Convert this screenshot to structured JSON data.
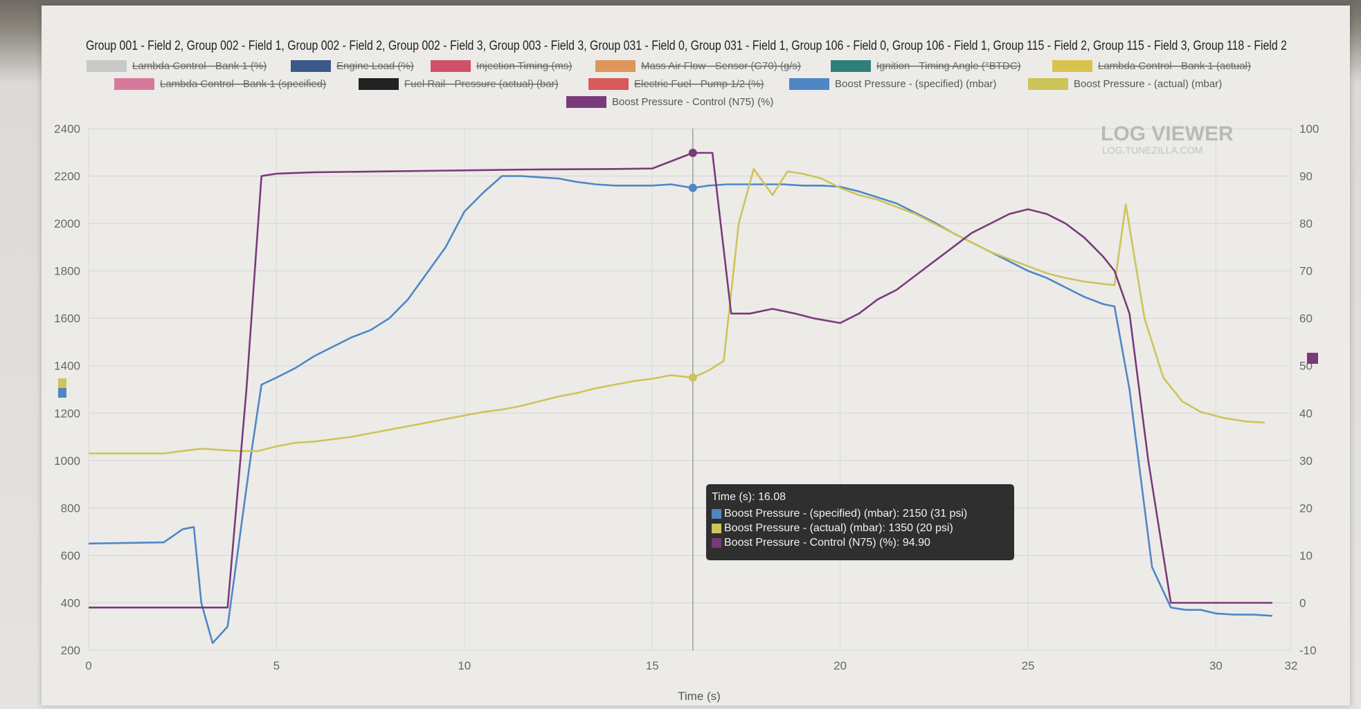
{
  "title": "Group 001 - Field 2, Group 002 - Field 1, Group 002 - Field 2, Group 002 - Field 3, Group 003 - Field 3, Group 031 - Field 0, Group 031 - Field 1, Group 106 - Field 0, Group 106 - Field 1, Group 115 - Field 2, Group 115 - Field 3, Group 118 - Field 2",
  "watermark": {
    "main": "LOG VIEWER",
    "sub": "LOG.TUNEZILLA.COM"
  },
  "legend": [
    {
      "label": "Lambda Control - Bank 1 (%)",
      "color": "#c8c8c8",
      "enabled": false
    },
    {
      "label": "Engine Load (%)",
      "color": "#3a5a8a",
      "enabled": false
    },
    {
      "label": "Injection Timing (ms)",
      "color": "#d0506a",
      "enabled": false
    },
    {
      "label": "Mass Air Flow - Sensor (G70) (g/s)",
      "color": "#e0955a",
      "enabled": false
    },
    {
      "label": "Ignition - Timing Angle (°BTDC)",
      "color": "#2f7f78",
      "enabled": false
    },
    {
      "label": "Lambda Control - Bank 1 (actual)",
      "color": "#d8c44c",
      "enabled": false
    },
    {
      "label": "Lambda Control - Bank 1 (specified)",
      "color": "#d57a9a",
      "enabled": false
    },
    {
      "label": "Fuel Rail - Pressure (actual) (bar)",
      "color": "#222222",
      "enabled": false
    },
    {
      "label": "Electric Fuel - Pump 1/2 (%)",
      "color": "#d85a5a",
      "enabled": false
    },
    {
      "label": "Boost Pressure - (specified) (mbar)",
      "color": "#4f86c6",
      "enabled": true
    },
    {
      "label": "Boost Pressure - (actual) (mbar)",
      "color": "#cdc45a",
      "enabled": true
    },
    {
      "label": "Boost Pressure - Control (N75) (%)",
      "color": "#7a3a7a",
      "enabled": true
    }
  ],
  "tooltip": {
    "time": "Time (s): 16.08",
    "rows": [
      {
        "text": "Boost Pressure - (specified) (mbar): 2150 (31 psi)",
        "color": "#4f86c6"
      },
      {
        "text": "Boost Pressure - (actual) (mbar): 1350 (20 psi)",
        "color": "#cdc45a"
      },
      {
        "text": "Boost Pressure - Control (N75) (%): 94.90",
        "color": "#7a3a7a"
      }
    ]
  },
  "chart_data": {
    "type": "line",
    "xlabel": "Time (s)",
    "x_ticks": [
      "0",
      "5",
      "10",
      "15",
      "20",
      "25",
      "30",
      "32"
    ],
    "xlim": [
      0,
      32
    ],
    "y_left_ticks": [
      "200",
      "400",
      "600",
      "800",
      "1000",
      "1200",
      "1400",
      "1600",
      "1800",
      "2000",
      "2200",
      "2400"
    ],
    "ylim_left": [
      200,
      2400
    ],
    "y_right_ticks": [
      "-10",
      "0",
      "10",
      "20",
      "30",
      "40",
      "50",
      "60",
      "70",
      "80",
      "90",
      "100"
    ],
    "ylim_right": [
      -10,
      100
    ],
    "grid": true,
    "cursor_x": 16.08,
    "series": [
      {
        "name": "Boost Pressure - (specified) (mbar)",
        "axis": "left",
        "color": "#4f86c6",
        "points": [
          [
            0,
            650
          ],
          [
            2,
            655
          ],
          [
            2.5,
            710
          ],
          [
            2.8,
            720
          ],
          [
            3,
            400
          ],
          [
            3.3,
            230
          ],
          [
            3.7,
            300
          ],
          [
            4.3,
            1000
          ],
          [
            4.6,
            1320
          ],
          [
            5,
            1350
          ],
          [
            5.5,
            1390
          ],
          [
            6,
            1440
          ],
          [
            6.5,
            1480
          ],
          [
            7,
            1520
          ],
          [
            7.5,
            1550
          ],
          [
            8,
            1600
          ],
          [
            8.5,
            1680
          ],
          [
            9,
            1790
          ],
          [
            9.5,
            1900
          ],
          [
            10,
            2050
          ],
          [
            10.5,
            2130
          ],
          [
            11,
            2200
          ],
          [
            11.5,
            2200
          ],
          [
            12,
            2195
          ],
          [
            12.5,
            2190
          ],
          [
            13,
            2175
          ],
          [
            13.5,
            2165
          ],
          [
            14,
            2160
          ],
          [
            14.5,
            2160
          ],
          [
            15,
            2160
          ],
          [
            15.5,
            2165
          ],
          [
            16.08,
            2150
          ],
          [
            16.5,
            2160
          ],
          [
            17,
            2165
          ],
          [
            17.5,
            2165
          ],
          [
            18,
            2165
          ],
          [
            18.5,
            2165
          ],
          [
            19,
            2160
          ],
          [
            19.5,
            2160
          ],
          [
            20,
            2155
          ],
          [
            20.5,
            2135
          ],
          [
            21,
            2110
          ],
          [
            21.5,
            2085
          ],
          [
            22,
            2045
          ],
          [
            22.5,
            2005
          ],
          [
            23,
            1960
          ],
          [
            23.5,
            1920
          ],
          [
            24,
            1880
          ],
          [
            24.5,
            1840
          ],
          [
            25,
            1800
          ],
          [
            25.5,
            1770
          ],
          [
            26,
            1730
          ],
          [
            26.5,
            1690
          ],
          [
            27,
            1660
          ],
          [
            27.3,
            1650
          ],
          [
            27.7,
            1300
          ],
          [
            28.3,
            550
          ],
          [
            28.8,
            380
          ],
          [
            29.2,
            370
          ],
          [
            29.6,
            370
          ],
          [
            30,
            355
          ],
          [
            30.5,
            350
          ],
          [
            31,
            350
          ],
          [
            31.5,
            345
          ]
        ]
      },
      {
        "name": "Boost Pressure - (actual) (mbar)",
        "axis": "left",
        "color": "#cdc45a",
        "points": [
          [
            0,
            1030
          ],
          [
            1,
            1030
          ],
          [
            2,
            1030
          ],
          [
            2.5,
            1040
          ],
          [
            3,
            1050
          ],
          [
            3.5,
            1045
          ],
          [
            4,
            1040
          ],
          [
            4.5,
            1040
          ],
          [
            5,
            1060
          ],
          [
            5.5,
            1075
          ],
          [
            6,
            1080
          ],
          [
            6.5,
            1090
          ],
          [
            7,
            1100
          ],
          [
            7.5,
            1115
          ],
          [
            8,
            1130
          ],
          [
            8.5,
            1145
          ],
          [
            9,
            1160
          ],
          [
            9.5,
            1175
          ],
          [
            10,
            1190
          ],
          [
            10.5,
            1205
          ],
          [
            11,
            1215
          ],
          [
            11.5,
            1230
          ],
          [
            12,
            1250
          ],
          [
            12.5,
            1270
          ],
          [
            13,
            1285
          ],
          [
            13.5,
            1305
          ],
          [
            14,
            1320
          ],
          [
            14.5,
            1335
          ],
          [
            15,
            1345
          ],
          [
            15.5,
            1360
          ],
          [
            16.08,
            1350
          ],
          [
            16.5,
            1380
          ],
          [
            16.9,
            1420
          ],
          [
            17.3,
            2000
          ],
          [
            17.7,
            2230
          ],
          [
            18.2,
            2120
          ],
          [
            18.6,
            2220
          ],
          [
            19,
            2210
          ],
          [
            19.5,
            2190
          ],
          [
            20,
            2150
          ],
          [
            20.5,
            2120
          ],
          [
            21,
            2100
          ],
          [
            21.5,
            2070
          ],
          [
            22,
            2040
          ],
          [
            22.5,
            2000
          ],
          [
            23,
            1960
          ],
          [
            23.5,
            1920
          ],
          [
            24,
            1880
          ],
          [
            24.5,
            1850
          ],
          [
            25,
            1820
          ],
          [
            25.5,
            1790
          ],
          [
            26,
            1770
          ],
          [
            26.5,
            1755
          ],
          [
            27,
            1745
          ],
          [
            27.3,
            1740
          ],
          [
            27.6,
            2080
          ],
          [
            28.1,
            1600
          ],
          [
            28.6,
            1350
          ],
          [
            29.1,
            1250
          ],
          [
            29.6,
            1205
          ],
          [
            30.2,
            1180
          ],
          [
            30.8,
            1165
          ],
          [
            31.3,
            1160
          ]
        ]
      },
      {
        "name": "Boost Pressure - Control (N75) (%)",
        "axis": "right",
        "color": "#7a3a7a",
        "points": [
          [
            0,
            -1
          ],
          [
            1,
            -1
          ],
          [
            2,
            -1
          ],
          [
            3,
            -1
          ],
          [
            3.7,
            -1
          ],
          [
            4.2,
            45
          ],
          [
            4.6,
            90
          ],
          [
            5,
            90.5
          ],
          [
            6,
            90.8
          ],
          [
            8,
            91
          ],
          [
            10,
            91.2
          ],
          [
            12,
            91.4
          ],
          [
            14,
            91.5
          ],
          [
            15,
            91.6
          ],
          [
            16.08,
            94.9
          ],
          [
            16.6,
            94.9
          ],
          [
            17.1,
            61
          ],
          [
            17.6,
            61
          ],
          [
            18.2,
            62
          ],
          [
            18.8,
            61
          ],
          [
            19.3,
            60
          ],
          [
            20,
            59
          ],
          [
            20.5,
            61
          ],
          [
            21,
            64
          ],
          [
            21.5,
            66
          ],
          [
            22,
            69
          ],
          [
            22.5,
            72
          ],
          [
            23,
            75
          ],
          [
            23.5,
            78
          ],
          [
            24,
            80
          ],
          [
            24.5,
            82
          ],
          [
            25,
            83
          ],
          [
            25.5,
            82
          ],
          [
            26,
            80
          ],
          [
            26.5,
            77
          ],
          [
            27,
            73
          ],
          [
            27.3,
            70
          ],
          [
            27.7,
            61
          ],
          [
            28.2,
            30
          ],
          [
            28.8,
            0
          ],
          [
            29.5,
            0
          ],
          [
            30,
            0
          ],
          [
            30.5,
            0
          ],
          [
            31,
            0
          ],
          [
            31.5,
            0
          ]
        ]
      }
    ]
  }
}
